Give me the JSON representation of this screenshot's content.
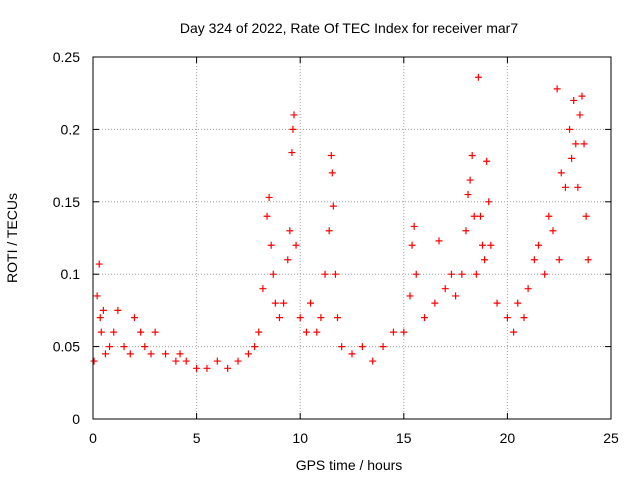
{
  "chart_data": {
    "type": "scatter",
    "title": "Day 324 of 2022, Rate Of TEC Index for receiver mar7",
    "xlabel": "GPS time / hours",
    "ylabel": "ROTI / TECUs",
    "xlim": [
      0,
      25
    ],
    "ylim": [
      0,
      0.25
    ],
    "x_ticks": [
      "0",
      "5",
      "10",
      "15",
      "20",
      "25"
    ],
    "y_ticks": [
      "0",
      "0.05",
      "0.1",
      "0.15",
      "0.2",
      "0.25"
    ],
    "grid": true,
    "marker": "+",
    "colors": {
      "points": "#ff0000",
      "grid": "#a0a0a0",
      "axes": "#000000"
    },
    "series": [
      {
        "x": [
          0.05,
          0.2,
          0.3,
          0.35,
          0.4,
          0.5,
          0.6,
          0.8,
          1.0,
          1.2,
          1.5,
          1.8,
          2.0,
          2.3,
          2.5,
          2.8,
          3.0,
          3.5,
          4.0,
          4.2,
          4.5,
          5.0,
          5.5,
          6.0,
          6.5,
          7.0,
          7.5,
          7.8,
          8.0,
          8.2,
          8.4,
          8.5,
          8.6,
          8.7,
          8.8,
          9.0,
          9.2,
          9.4,
          9.5,
          9.6,
          9.65,
          9.7,
          9.8,
          10.0,
          10.3,
          10.5,
          10.8,
          11.0,
          11.2,
          11.4,
          11.5,
          11.55,
          11.6,
          11.7,
          11.8,
          12.0,
          12.5,
          13.0,
          13.5,
          14.0,
          14.5,
          15.0,
          15.3,
          15.4,
          15.5,
          15.6,
          16.0,
          16.5,
          16.7,
          17.0,
          17.3,
          17.5,
          17.8,
          18.0,
          18.1,
          18.2,
          18.3,
          18.4,
          18.5,
          18.6,
          18.7,
          18.8,
          18.9,
          19.0,
          19.1,
          19.2,
          19.5,
          20.0,
          20.3,
          20.5,
          20.8,
          21.0,
          21.3,
          21.5,
          21.8,
          22.0,
          22.2,
          22.4,
          22.5,
          22.6,
          22.8,
          23.0,
          23.1,
          23.2,
          23.3,
          23.4,
          23.5,
          23.6,
          23.7,
          23.8,
          23.9
        ],
        "y": [
          0.04,
          0.085,
          0.107,
          0.07,
          0.06,
          0.075,
          0.045,
          0.05,
          0.06,
          0.075,
          0.05,
          0.045,
          0.07,
          0.06,
          0.05,
          0.045,
          0.06,
          0.045,
          0.04,
          0.045,
          0.04,
          0.035,
          0.035,
          0.04,
          0.035,
          0.04,
          0.045,
          0.05,
          0.06,
          0.09,
          0.14,
          0.153,
          0.12,
          0.1,
          0.08,
          0.07,
          0.08,
          0.11,
          0.13,
          0.184,
          0.2,
          0.21,
          0.12,
          0.07,
          0.06,
          0.08,
          0.06,
          0.07,
          0.1,
          0.13,
          0.182,
          0.17,
          0.147,
          0.1,
          0.07,
          0.05,
          0.045,
          0.05,
          0.04,
          0.05,
          0.06,
          0.06,
          0.085,
          0.12,
          0.133,
          0.1,
          0.07,
          0.08,
          0.123,
          0.09,
          0.1,
          0.085,
          0.1,
          0.13,
          0.155,
          0.165,
          0.182,
          0.14,
          0.1,
          0.236,
          0.14,
          0.12,
          0.11,
          0.178,
          0.15,
          0.12,
          0.08,
          0.07,
          0.06,
          0.08,
          0.07,
          0.09,
          0.11,
          0.12,
          0.1,
          0.14,
          0.13,
          0.228,
          0.11,
          0.17,
          0.16,
          0.2,
          0.18,
          0.22,
          0.19,
          0.16,
          0.21,
          0.223,
          0.19,
          0.14,
          0.11
        ]
      }
    ]
  }
}
